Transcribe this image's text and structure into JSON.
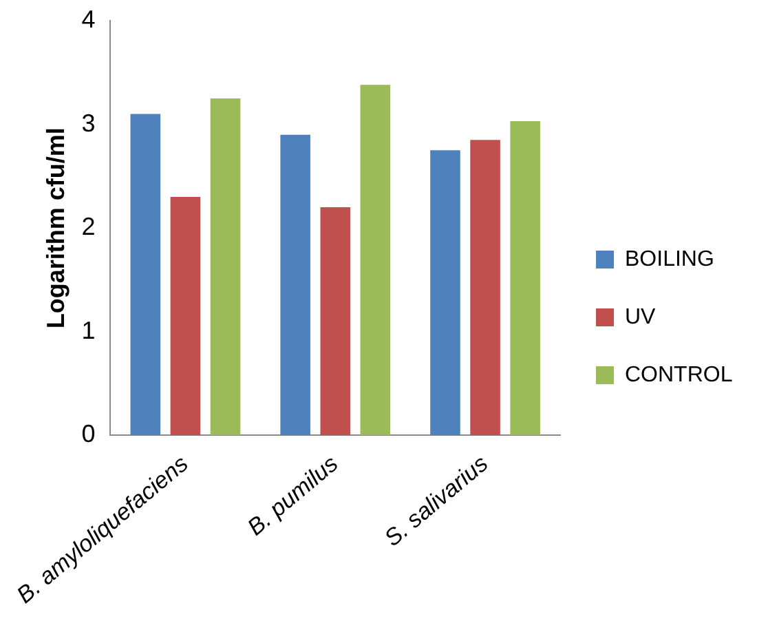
{
  "chart_data": {
    "type": "bar",
    "ylabel": "Logarithm cfu/ml",
    "categories": [
      "B. amyloliquefaciens",
      "B. pumilus",
      "S. salivarius"
    ],
    "series": [
      {
        "name": "BOILING",
        "color": "#4f81bd",
        "values": [
          3.1,
          2.9,
          2.75
        ]
      },
      {
        "name": "UV",
        "color": "#c0504d",
        "values": [
          2.3,
          2.2,
          2.85
        ]
      },
      {
        "name": "CONTROL",
        "color": "#9bbb59",
        "values": [
          3.25,
          3.38,
          3.03
        ]
      }
    ],
    "ylim": [
      0,
      4
    ],
    "yticks": [
      0,
      1,
      2,
      3,
      4
    ],
    "grid": false,
    "legend": "right"
  }
}
